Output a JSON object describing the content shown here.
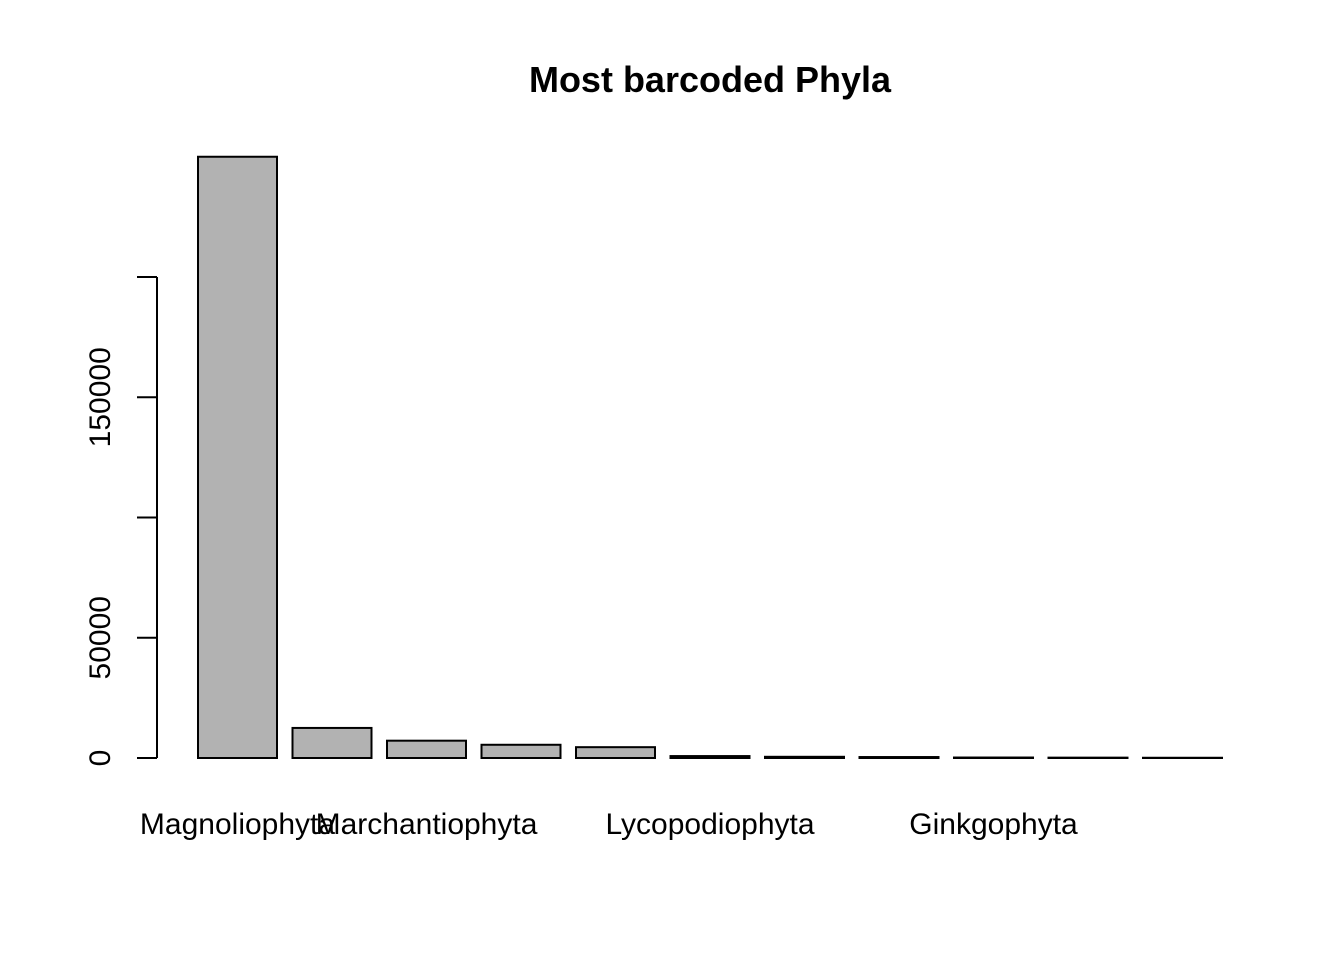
{
  "chart_data": {
    "type": "bar",
    "title": "Most barcoded Phyla",
    "xlabel": "",
    "ylabel": "",
    "bar_color": "#b2b2b2",
    "border_color": "#000000",
    "categories": [
      "Magnoliophyta",
      "",
      "Marchantiophyta",
      "",
      "",
      "Lycopodiophyta",
      "",
      "",
      "Ginkgophyta",
      "",
      ""
    ],
    "values": [
      250000,
      12500,
      7200,
      5500,
      4500,
      800,
      500,
      400,
      200,
      150,
      100
    ],
    "ylim": [
      0,
      250000
    ],
    "yticks": [
      0,
      50000,
      100000,
      150000,
      200000
    ],
    "ytick_labels": [
      "0",
      "50000",
      "",
      "150000",
      ""
    ],
    "grid": false,
    "legend": "none"
  }
}
